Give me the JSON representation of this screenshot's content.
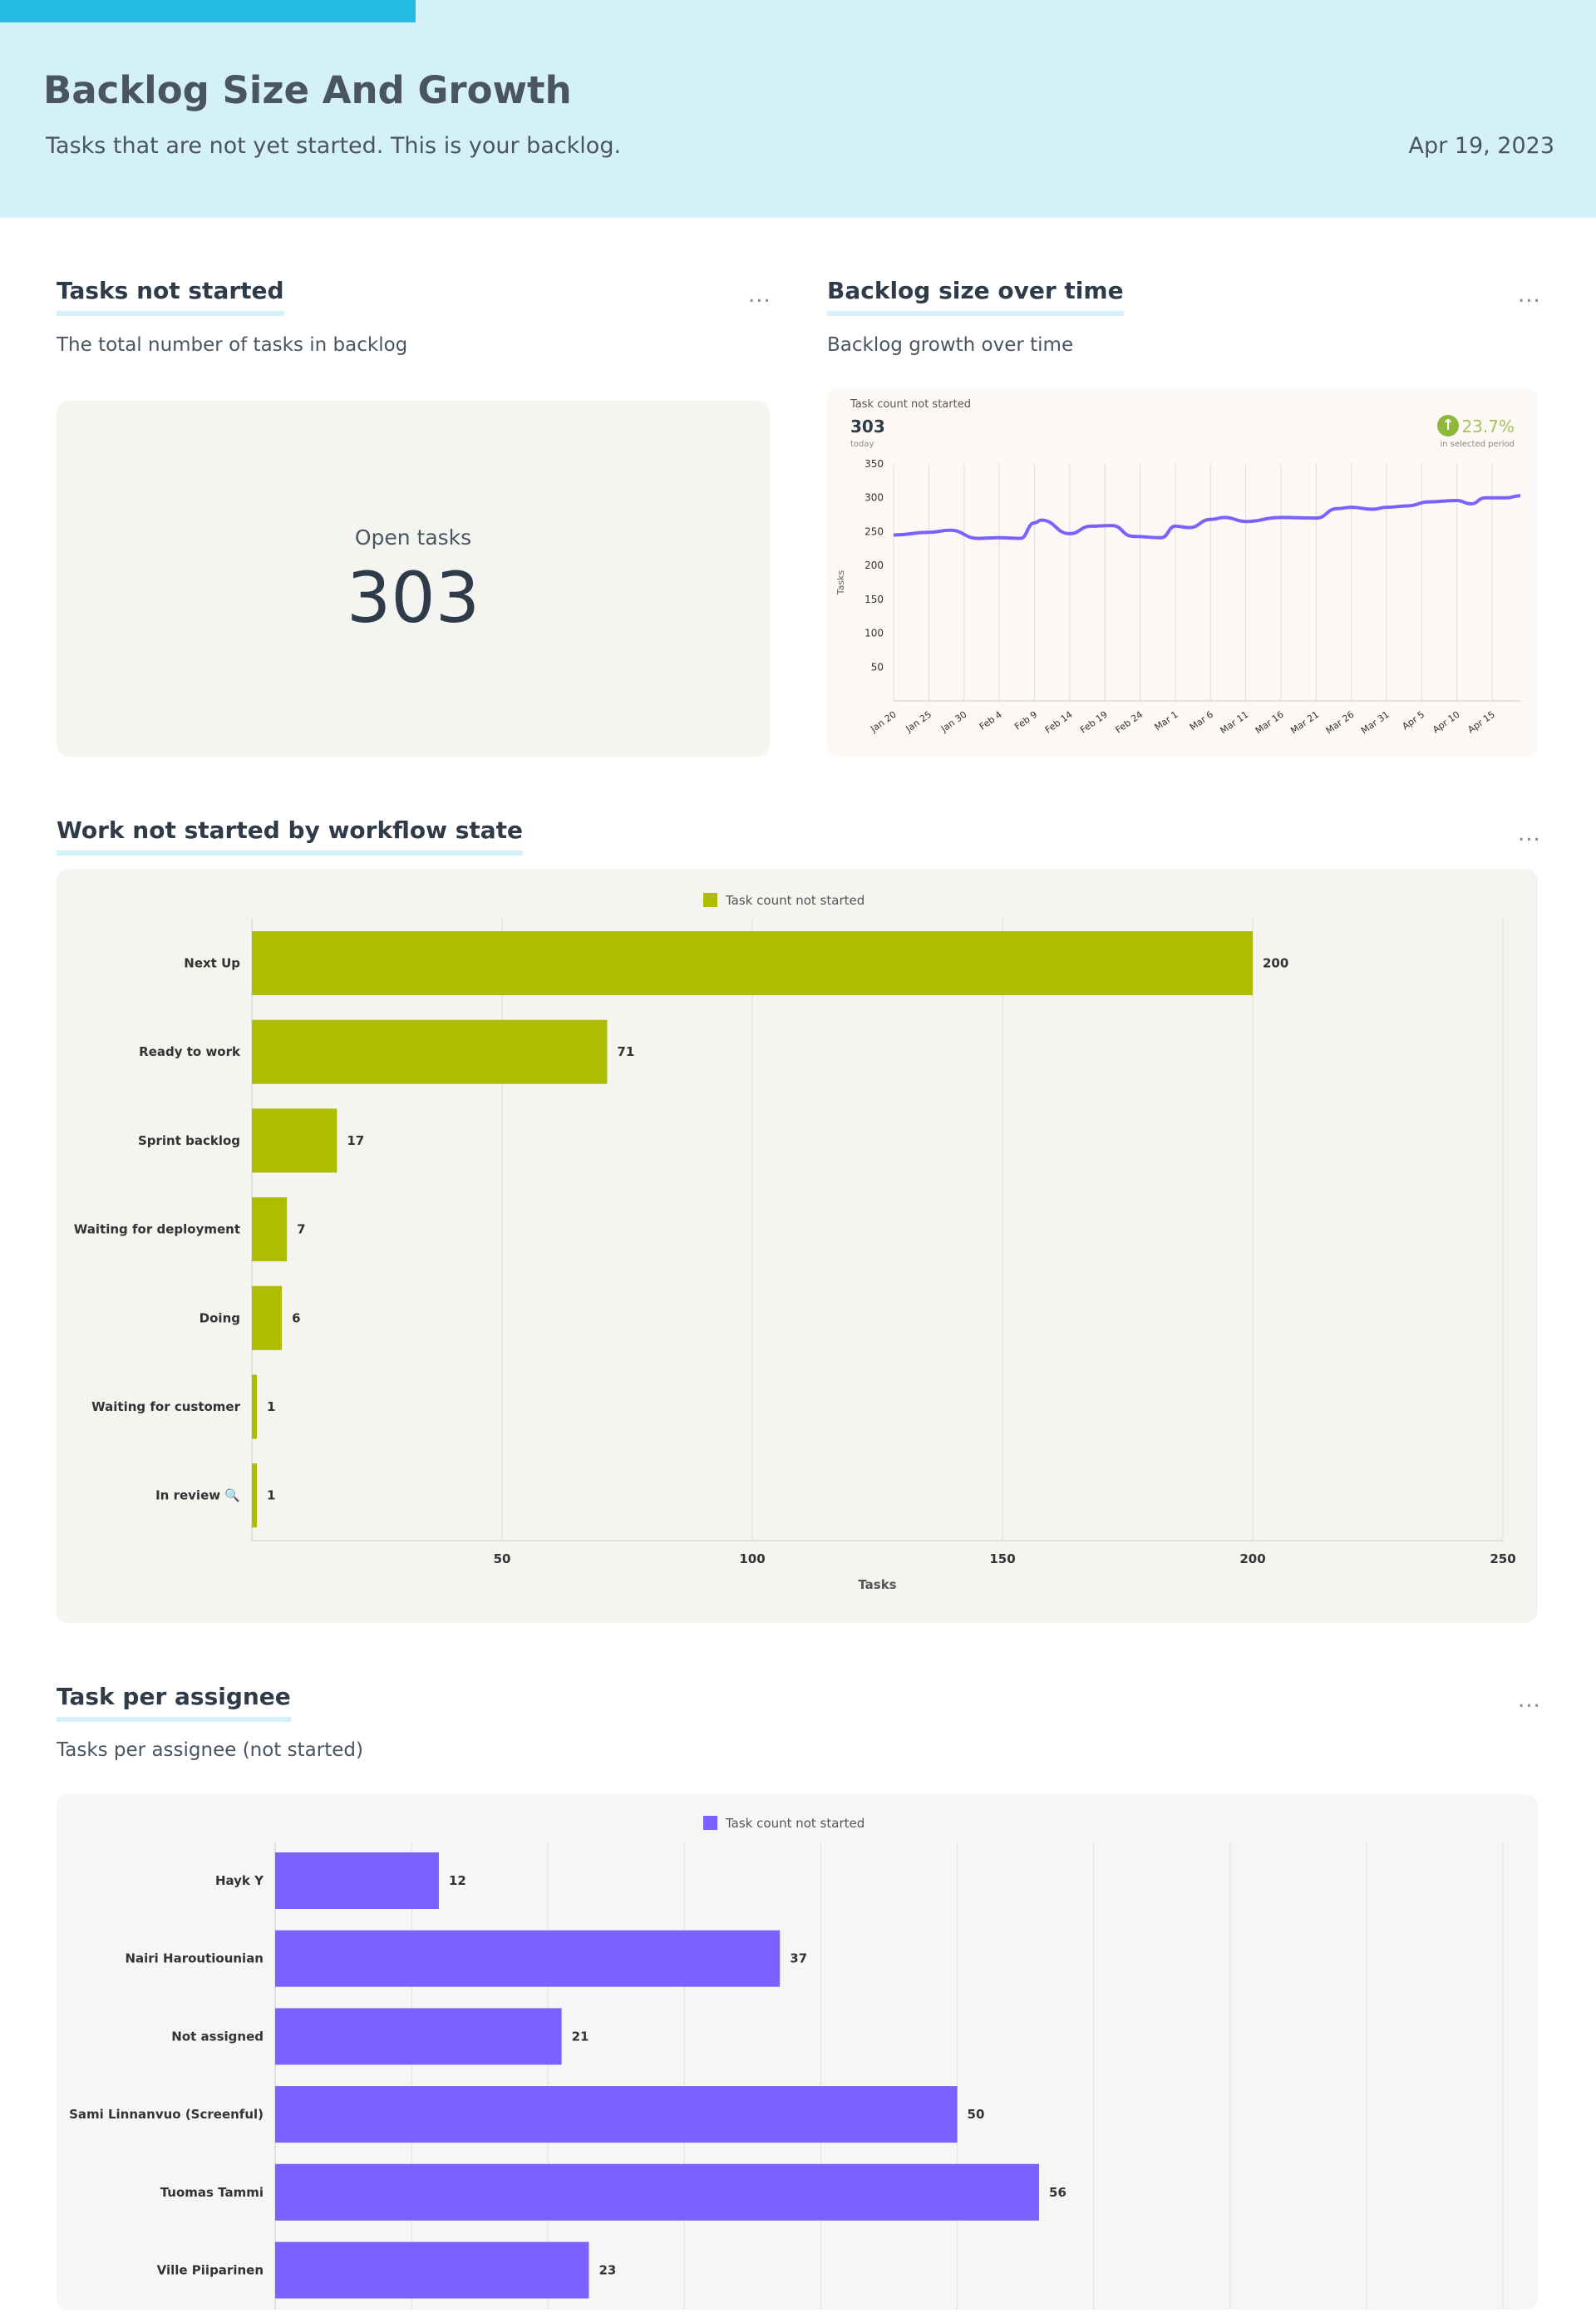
{
  "header": {
    "title": "Backlog Size And Growth",
    "subtitle": "Tasks that are not yet started. This is your backlog.",
    "date": "Apr 19, 2023"
  },
  "colors": {
    "header_bg": "#d4f1f9",
    "accent": "#25bde3",
    "olive": "#b0bc00",
    "purple": "#7b61ff",
    "up_green": "#8fb83a"
  },
  "tasks_not_started": {
    "title": "Tasks not started",
    "subtitle": "The total number of tasks in backlog",
    "label": "Open tasks",
    "value": "303",
    "menu": "..."
  },
  "backlog_over_time": {
    "title": "Backlog size over time",
    "subtitle": "Backlog growth over time",
    "menu": "...",
    "metric_label": "Task count not started",
    "metric_value": "303",
    "metric_sub": "today",
    "change": "23.7%",
    "change_sub": "in selected period",
    "change_icon": "arrow-up-circle-icon"
  },
  "workflow": {
    "title": "Work not started by workflow state",
    "menu": "..."
  },
  "assignee": {
    "title": "Task per assignee",
    "subtitle": "Tasks per assignee (not started)",
    "menu": "..."
  },
  "chart_data": [
    {
      "type": "line",
      "ylabel": "Tasks",
      "ylim": [
        0,
        350
      ],
      "yticks": [
        50,
        100,
        150,
        200,
        250,
        300,
        350
      ],
      "grid": true,
      "xticks": [
        "Jan 20",
        "Jan 25",
        "Jan 30",
        "Feb 4",
        "Feb 9",
        "Feb 14",
        "Feb 19",
        "Feb 24",
        "Mar 1",
        "Mar 6",
        "Mar 11",
        "Mar 16",
        "Mar 21",
        "Mar 26",
        "Mar 31",
        "Apr 5",
        "Apr 10",
        "Apr 15"
      ],
      "x": [
        "Jan 20",
        "Jan 25",
        "Jan 28",
        "Feb 1",
        "Feb 4",
        "Feb 7",
        "Feb 9",
        "Feb 10",
        "Feb 14",
        "Feb 17",
        "Feb 20",
        "Feb 23",
        "Feb 27",
        "Mar 1",
        "Mar 3",
        "Mar 6",
        "Mar 8",
        "Mar 11",
        "Mar 16",
        "Mar 21",
        "Mar 24",
        "Mar 26",
        "Mar 29",
        "Mar 31",
        "Apr 3",
        "Apr 6",
        "Apr 10",
        "Apr 12",
        "Apr 14",
        "Apr 17",
        "Apr 19"
      ],
      "y": [
        245,
        249,
        252,
        240,
        241,
        240,
        263,
        267,
        247,
        258,
        259,
        243,
        241,
        258,
        256,
        268,
        271,
        265,
        271,
        270,
        284,
        286,
        283,
        286,
        288,
        294,
        296,
        291,
        300,
        300,
        303
      ],
      "color": "#7b61ff"
    },
    {
      "type": "bar",
      "orientation": "horizontal",
      "legend": "Task count not started",
      "legend_position": "top",
      "xlabel": "Tasks",
      "xlim": [
        0,
        250
      ],
      "xticks": [
        50,
        100,
        150,
        200,
        250
      ],
      "grid": true,
      "categories": [
        "Next Up",
        "Ready to work",
        "Sprint backlog",
        "Waiting for deployment",
        "Doing",
        "Waiting for customer",
        "In review 🔍"
      ],
      "values": [
        200,
        71,
        17,
        7,
        6,
        1,
        1
      ],
      "color": "#b0bc00"
    },
    {
      "type": "bar",
      "orientation": "horizontal",
      "legend": "Task count not started",
      "legend_position": "top",
      "xlim": [
        0,
        90
      ],
      "grid": true,
      "categories": [
        "Hayk Y",
        "Nairi Haroutiounian",
        "Not assigned",
        "Sami Linnanvuo (Screenful)",
        "Tuomas Tammi",
        "Ville Piiparinen"
      ],
      "values": [
        12,
        37,
        21,
        50,
        56,
        23
      ],
      "color": "#7b61ff"
    }
  ]
}
